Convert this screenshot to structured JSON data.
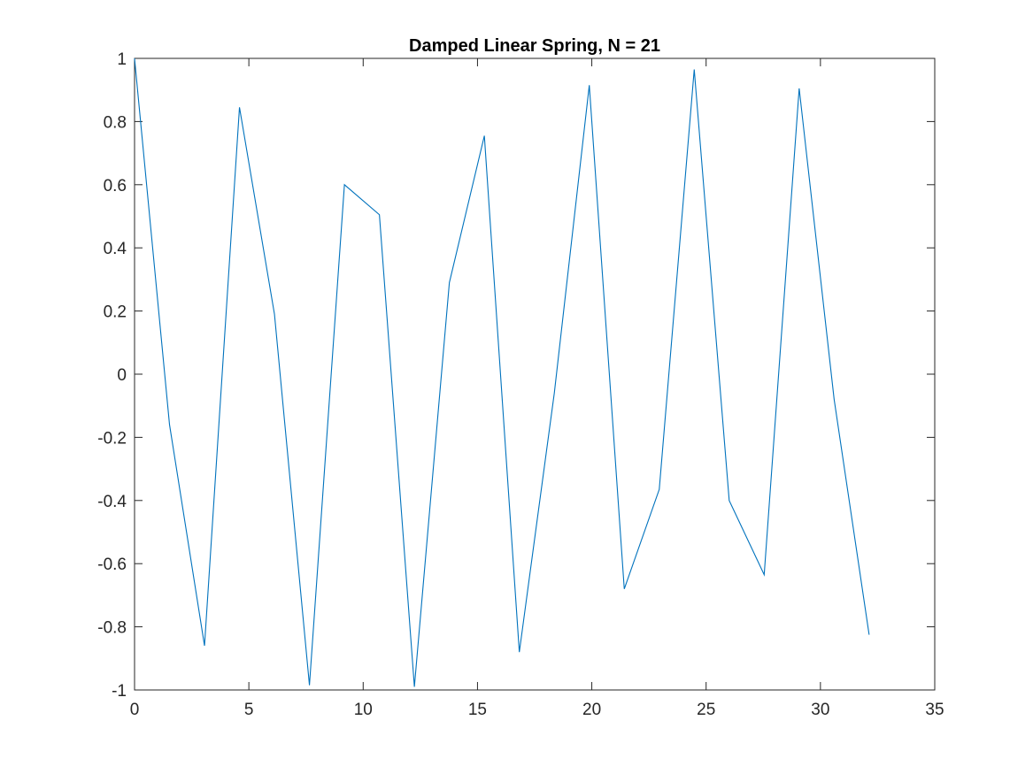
{
  "chart_data": {
    "type": "line",
    "title": "Damped Linear Spring, N = 21",
    "xlabel": "",
    "ylabel": "",
    "xlim": [
      0,
      35
    ],
    "ylim": [
      -1,
      1
    ],
    "grid": false,
    "xticks": [
      0,
      5,
      10,
      15,
      20,
      25,
      30,
      35
    ],
    "yticks": [
      -1,
      -0.8,
      -0.6,
      -0.4,
      -0.2,
      0,
      0.2,
      0.4,
      0.6,
      0.8,
      1
    ],
    "xtick_labels": [
      "0",
      "5",
      "10",
      "15",
      "20",
      "25",
      "30",
      "35"
    ],
    "ytick_labels": [
      "-1",
      "-0.8",
      "-0.6",
      "-0.4",
      "-0.2",
      "0",
      "0.2",
      "0.4",
      "0.6",
      "0.8",
      "1"
    ],
    "series": [
      {
        "color": "#0072BD",
        "x": [
          0,
          1.53,
          3.06,
          4.59,
          6.12,
          7.65,
          9.18,
          10.71,
          12.24,
          13.77,
          15.3,
          16.83,
          18.36,
          19.89,
          21.42,
          22.95,
          24.48,
          26.01,
          27.54,
          29.07,
          30.6,
          32.13
        ],
        "y": [
          1.0,
          -0.16,
          -0.86,
          0.845,
          0.19,
          -0.985,
          0.6,
          0.505,
          -0.99,
          0.29,
          0.755,
          -0.88,
          -0.06,
          0.915,
          -0.68,
          -0.365,
          0.965,
          -0.4,
          -0.635,
          0.905,
          -0.08,
          -0.825
        ]
      }
    ]
  }
}
